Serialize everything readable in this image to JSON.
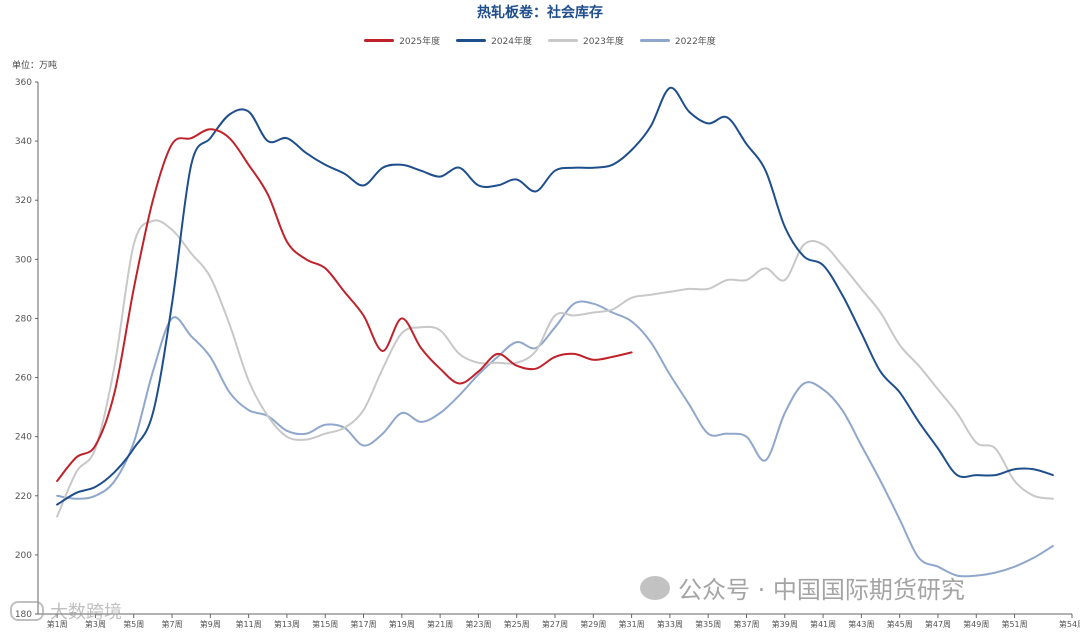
{
  "chart_data": {
    "type": "line",
    "title": "热轧板卷：社会库存",
    "unit_label": "单位：万吨",
    "ylim": [
      180,
      360
    ],
    "yticks": [
      360,
      340,
      320,
      300,
      280,
      260,
      240,
      220,
      200,
      180
    ],
    "xlim": [
      0,
      54
    ],
    "xticks": [
      "第1周",
      "第3周",
      "第5周",
      "第7周",
      "第9周",
      "第11周",
      "第13周",
      "第15周",
      "第17周",
      "第19周",
      "第21周",
      "第23周",
      "第25周",
      "第27周",
      "第29周",
      "第31周",
      "第33周",
      "第35周",
      "第37周",
      "第39周",
      "第41周",
      "第43周",
      "第45周",
      "第47周",
      "第49周",
      "第51周",
      "第54周"
    ],
    "xtick_weeks": [
      1,
      3,
      5,
      7,
      9,
      11,
      13,
      15,
      17,
      19,
      21,
      23,
      25,
      27,
      29,
      31,
      33,
      35,
      37,
      39,
      41,
      43,
      45,
      47,
      49,
      51,
      54
    ],
    "legend_position": "top-center",
    "grid": false,
    "series": [
      {
        "name": "2025年度",
        "color": "#c0222b",
        "x": [
          1,
          2,
          3,
          4,
          5,
          6,
          7,
          8,
          9,
          10,
          11,
          12,
          13,
          14,
          15,
          16,
          17,
          18,
          19,
          20,
          21,
          22,
          23,
          24,
          25,
          26,
          27,
          28,
          29,
          30,
          31
        ],
        "values": [
          225,
          233,
          237,
          255,
          290,
          320,
          339,
          341,
          344,
          341,
          332,
          322,
          306,
          300,
          297,
          289,
          281,
          269,
          280,
          270,
          263,
          258,
          262,
          268,
          264,
          263,
          267,
          268,
          266,
          267,
          268.5
        ]
      },
      {
        "name": "2024年度",
        "color": "#1f4e8c",
        "x": [
          1,
          2,
          3,
          4,
          5,
          6,
          7,
          8,
          9,
          10,
          11,
          12,
          13,
          14,
          15,
          16,
          17,
          18,
          19,
          20,
          21,
          22,
          23,
          24,
          25,
          26,
          27,
          28,
          29,
          30,
          31,
          32,
          33,
          34,
          35,
          36,
          37,
          38,
          39,
          40,
          41,
          42,
          43,
          44,
          45,
          46,
          47,
          48,
          49,
          50,
          51,
          52,
          53
        ],
        "values": [
          217,
          221,
          223,
          228,
          236,
          248,
          285,
          332,
          341,
          349,
          350,
          340,
          341,
          336,
          332,
          329,
          325,
          331,
          332,
          330,
          328,
          331,
          325,
          325,
          327,
          323,
          330,
          331,
          331,
          332,
          337,
          345,
          358,
          350,
          346,
          348,
          339,
          330,
          311,
          301,
          298,
          288,
          275,
          262,
          255,
          245,
          236,
          227,
          227,
          227,
          229,
          229,
          227
        ]
      },
      {
        "name": "2023年度",
        "color": "#c8c8c8",
        "x": [
          1,
          2,
          3,
          4,
          5,
          6,
          7,
          8,
          9,
          10,
          11,
          12,
          13,
          14,
          15,
          16,
          17,
          18,
          19,
          20,
          21,
          22,
          23,
          24,
          25,
          26,
          27,
          28,
          29,
          30,
          31,
          32,
          33,
          34,
          35,
          36,
          37,
          38,
          39,
          40,
          41,
          42,
          43,
          44,
          45,
          46,
          47,
          48,
          49,
          50,
          51,
          52,
          53
        ],
        "values": [
          213,
          228,
          236,
          264,
          305,
          313,
          310,
          302,
          294,
          278,
          259,
          247,
          240,
          239,
          241,
          243,
          249,
          263,
          275,
          277,
          276,
          268,
          265,
          265,
          265,
          269,
          281,
          281,
          282,
          283,
          287,
          288,
          289,
          290,
          290,
          293,
          293,
          297,
          293,
          305,
          305,
          298,
          290,
          282,
          271,
          264,
          256,
          248,
          238,
          236,
          225,
          220,
          219
        ]
      },
      {
        "name": "2022年度",
        "color": "#8fa7cc",
        "x": [
          1,
          2,
          3,
          4,
          5,
          6,
          7,
          8,
          9,
          10,
          11,
          12,
          13,
          14,
          15,
          16,
          17,
          18,
          19,
          20,
          21,
          22,
          23,
          24,
          25,
          26,
          27,
          28,
          29,
          30,
          31,
          32,
          33,
          34,
          35,
          36,
          37,
          38,
          39,
          40,
          41,
          42,
          43,
          44,
          45,
          46,
          47,
          48,
          49,
          50,
          51,
          52,
          53
        ],
        "values": [
          220,
          219,
          220,
          225,
          238,
          262,
          280,
          274,
          267,
          255,
          249,
          247,
          242,
          241,
          244,
          243,
          237,
          241,
          248,
          245,
          248,
          254,
          261,
          267,
          272,
          270,
          277,
          285,
          285,
          282,
          279,
          272,
          261,
          251,
          241,
          241,
          240,
          232,
          248,
          258,
          256,
          249,
          237,
          225,
          212,
          199,
          196,
          193,
          193,
          194,
          196,
          199,
          203
        ]
      }
    ]
  },
  "watermarks": {
    "right": "公众号 · 中国国际期货研究",
    "left": "大数跨境"
  }
}
